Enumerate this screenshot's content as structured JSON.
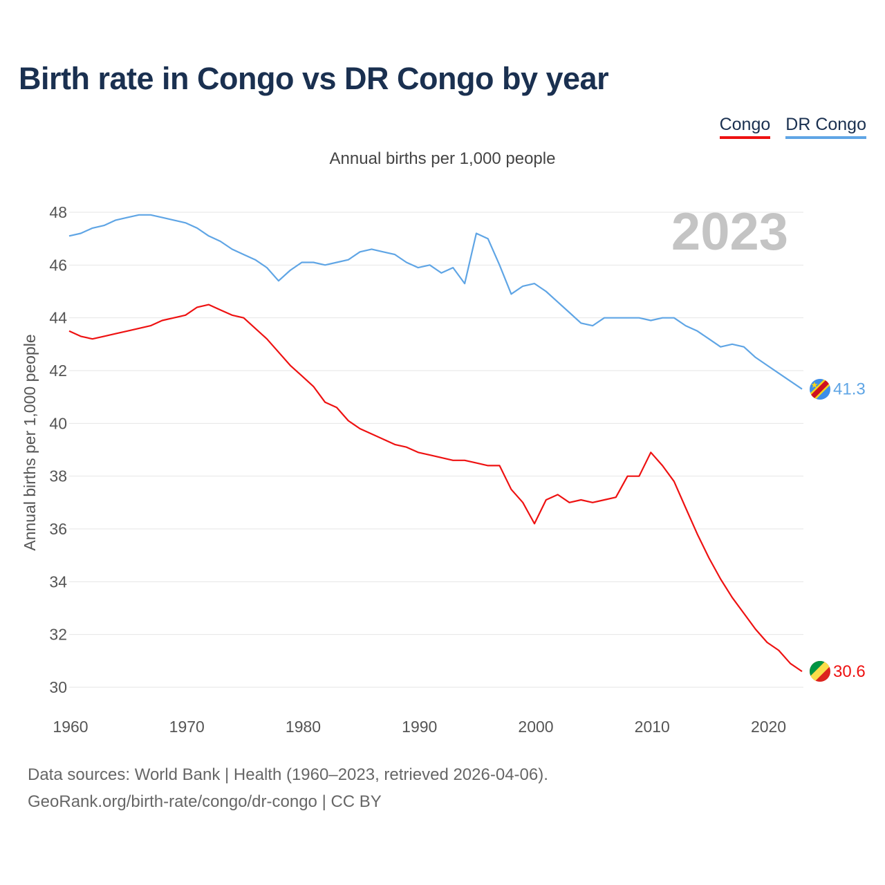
{
  "title": "Birth rate in Congo vs DR Congo by year",
  "subtitle": "Annual births per 1,000 people",
  "footer": {
    "line1": "Data sources: World Bank | Health (1960–2023, retrieved 2026-04-06).",
    "line2": "GeoRank.org/birth-rate/congo/dr-congo | CC BY"
  },
  "colors": {
    "congo": "#ee1111",
    "dr_congo": "#5fa5e5",
    "grid": "#e6e6e6"
  },
  "chart_data": {
    "type": "line",
    "title": "Birth rate in Congo vs DR Congo by year",
    "subtitle": "Annual births per 1,000 people",
    "xlabel": "",
    "ylabel": "Annual births per 1,000 people",
    "xlim": [
      1960,
      2023
    ],
    "ylim": [
      30,
      48
    ],
    "xticks": [
      1960,
      1970,
      1980,
      1990,
      2000,
      2010,
      2020
    ],
    "yticks": [
      30,
      32,
      34,
      36,
      38,
      40,
      42,
      44,
      46,
      48
    ],
    "grid": true,
    "legend_position": "top-right",
    "annotation": "2023",
    "x": [
      1960,
      1961,
      1962,
      1963,
      1964,
      1965,
      1966,
      1967,
      1968,
      1969,
      1970,
      1971,
      1972,
      1973,
      1974,
      1975,
      1976,
      1977,
      1978,
      1979,
      1980,
      1981,
      1982,
      1983,
      1984,
      1985,
      1986,
      1987,
      1988,
      1989,
      1990,
      1991,
      1992,
      1993,
      1994,
      1995,
      1996,
      1997,
      1998,
      1999,
      2000,
      2001,
      2002,
      2003,
      2004,
      2005,
      2006,
      2007,
      2008,
      2009,
      2010,
      2011,
      2012,
      2013,
      2014,
      2015,
      2016,
      2017,
      2018,
      2019,
      2020,
      2021,
      2022,
      2023
    ],
    "series": [
      {
        "name": "Congo",
        "key": "congo",
        "last_label": "30.6",
        "values": [
          43.5,
          43.3,
          43.2,
          43.3,
          43.4,
          43.5,
          43.6,
          43.7,
          43.9,
          44.0,
          44.1,
          44.4,
          44.5,
          44.3,
          44.1,
          44.0,
          43.6,
          43.2,
          42.7,
          42.2,
          41.8,
          41.4,
          40.8,
          40.6,
          40.1,
          39.8,
          39.6,
          39.4,
          39.2,
          39.1,
          38.9,
          38.8,
          38.7,
          38.6,
          38.6,
          38.5,
          38.4,
          38.4,
          37.5,
          37.0,
          36.2,
          37.1,
          37.3,
          37.0,
          37.1,
          37.0,
          37.1,
          37.2,
          38.0,
          38.0,
          38.9,
          38.4,
          37.8,
          36.8,
          35.8,
          34.9,
          34.1,
          33.4,
          32.8,
          32.2,
          31.7,
          31.4,
          30.9,
          30.6
        ]
      },
      {
        "name": "DR Congo",
        "key": "dr_congo",
        "last_label": "41.3",
        "values": [
          47.1,
          47.2,
          47.4,
          47.5,
          47.7,
          47.8,
          47.9,
          47.9,
          47.8,
          47.7,
          47.6,
          47.4,
          47.1,
          46.9,
          46.6,
          46.4,
          46.2,
          45.9,
          45.4,
          45.8,
          46.1,
          46.1,
          46.0,
          46.1,
          46.2,
          46.5,
          46.6,
          46.5,
          46.4,
          46.1,
          45.9,
          46.0,
          45.7,
          45.9,
          45.3,
          47.2,
          47.0,
          46.0,
          44.9,
          45.2,
          45.3,
          45.0,
          44.6,
          44.2,
          43.8,
          43.7,
          44.0,
          44.0,
          44.0,
          44.0,
          43.9,
          44.0,
          44.0,
          43.7,
          43.5,
          43.2,
          42.9,
          43.0,
          42.9,
          42.5,
          42.2,
          41.9,
          41.6,
          41.3
        ]
      }
    ]
  }
}
